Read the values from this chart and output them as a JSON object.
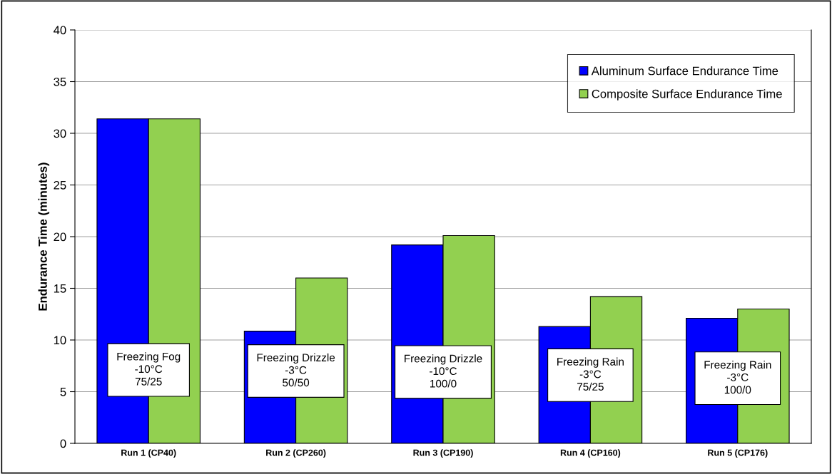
{
  "chart_data": {
    "type": "bar",
    "ylabel": "Endurance Time (minutes)",
    "categories": [
      "Run 1 (CP40)",
      "Run 2 (CP260)",
      "Run 3 (CP190)",
      "Run 4 (CP160)",
      "Run 5 (CP176)"
    ],
    "series": [
      {
        "name": "Aluminum Surface Endurance Time",
        "color": "#0000ff",
        "values": [
          31.4,
          10.85,
          19.2,
          11.3,
          12.1
        ]
      },
      {
        "name": "Composite Surface Endurance Time",
        "color": "#92d050",
        "values": [
          31.4,
          16.0,
          20.1,
          14.2,
          13.0
        ]
      }
    ],
    "ylim": [
      0,
      40
    ],
    "yticks": [
      0,
      5,
      10,
      15,
      20,
      25,
      30,
      35,
      40
    ],
    "grid": "y",
    "legend": "top right",
    "annotations": [
      {
        "text": "Freezing Fog\n-10°C\n75/25",
        "x": "Run 1 (CP40)",
        "y": 7.1
      },
      {
        "text": "Freezing Drizzle\n-3°C\n50/50",
        "x": "Run 2 (CP260)",
        "y": 7.0
      },
      {
        "text": "Freezing Drizzle\n-10°C\n100/0",
        "x": "Run 3 (CP190)",
        "y": 6.9
      },
      {
        "text": "Freezing Rain\n-3°C\n75/25",
        "x": "Run 4 (CP160)",
        "y": 6.6
      },
      {
        "text": "Freezing Rain\n-3°C\n100/0",
        "x": "Run 5 (CP176)",
        "y": 6.3
      }
    ]
  }
}
